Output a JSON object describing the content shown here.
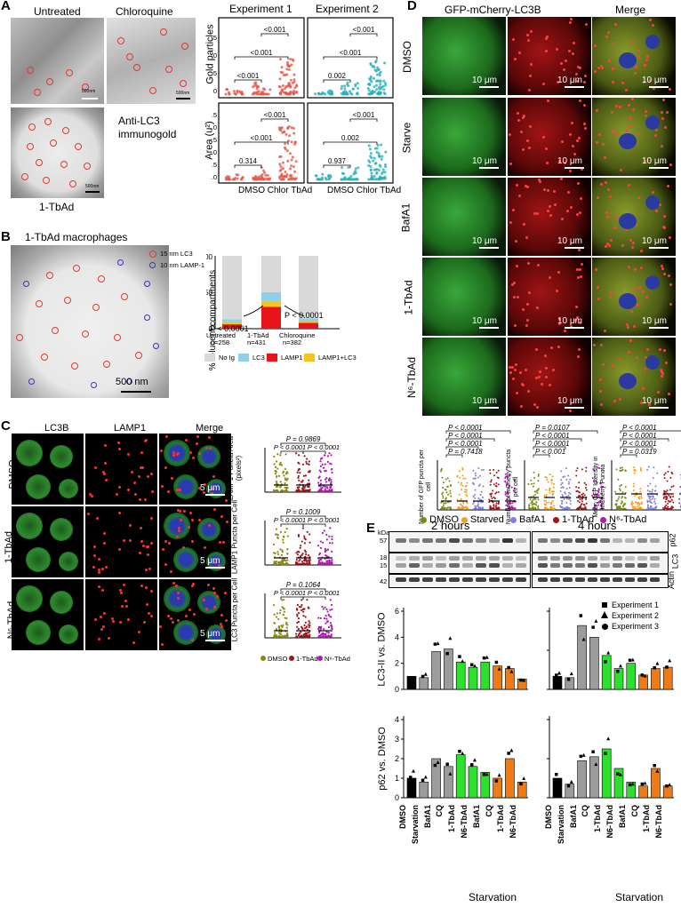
{
  "panels": {
    "A": {
      "letter": "A",
      "images": {
        "untreated": "Untreated",
        "chloroquine": "Chloroquine",
        "tbad": "1-TbAd"
      },
      "scalebar": "500nm",
      "caption_line1": "Anti-LC3",
      "caption_line2": "immunogold",
      "exp1": "Experiment 1",
      "exp2": "Experiment 2",
      "ylabel_top": "Gold particles",
      "ylabel_bottom": "Area (u²)",
      "xcats": "DMSO Chlor TbAd"
    },
    "B": {
      "letter": "B",
      "title": "1-TbAd macrophages",
      "legend_lc3": "15 nm LC3",
      "legend_lamp": "10 nm LAMP-1",
      "scalebar": "500 nm",
      "ylabel": "% e-lucent compartments",
      "groups": [
        "Untreated",
        "1-TbAd",
        "Chloroquine"
      ],
      "ns": [
        "n=258",
        "n=431",
        "n=382"
      ],
      "p1": "P < 0.0001",
      "p2": "P < 0.0001",
      "legend": [
        "No Ig",
        "LC3",
        "LAMP1",
        "LAMP1+LC3"
      ]
    },
    "C": {
      "letter": "C",
      "cols": [
        "LC3B",
        "LAMP1",
        "Merge"
      ],
      "rows": [
        "DMSO",
        "1-TbAd",
        "N⁶-TbAd"
      ],
      "scalebar": "5 μm",
      "plots": [
        {
          "ylabel": "LAMP1 Puncta Area (pixels²)",
          "p_top": "P = 0.9869",
          "p_a": "P < 0.0001",
          "p_b": "P < 0.0001"
        },
        {
          "ylabel": "LAMP1 Puncta per Cell",
          "p_top": "P = 0.1009",
          "p_a": "P < 0.0001",
          "p_b": "P < 0.0001"
        },
        {
          "ylabel": "LC3 Puncta per Cell",
          "p_top": "P = 0.1064",
          "p_a": "P < 0.0001",
          "p_b": "P < 0.0001"
        }
      ],
      "legend": [
        "DMSO",
        "1-TbAd",
        "N⁶-TbAd"
      ]
    },
    "D": {
      "letter": "D",
      "title": "GFP-mCherry-LC3B",
      "merge": "Merge",
      "rows": [
        "DMSO",
        "Starve",
        "BafA1",
        "1-TbAd",
        "N⁶-TbAd"
      ],
      "scalebar": "10 μm",
      "plot1": {
        "ylabel": "Number of GFP puncta per cell",
        "p": [
          "P < 0.0001",
          "P < 0.0001",
          "P < 0.0001",
          "P = 0.7418"
        ]
      },
      "plot2": {
        "ylabel": "Number of mCherry puncta per cell",
        "p": [
          "P = 0.0107",
          "P < 0.0001",
          "P < 0.0001",
          "P < 0.001"
        ]
      },
      "plot3": {
        "ylabel": "Mean GFP Intensity in mCherry Puncta",
        "p": [
          "P < 0.0001",
          "P < 0.0001",
          "P < 0.0001",
          "P = 0.0319"
        ]
      },
      "legend": [
        "DMSO",
        "Starved",
        "BafA1",
        "1-TbAd",
        "N⁶-TbAd"
      ]
    },
    "E": {
      "letter": "E",
      "t1": "2 hours",
      "t2": "4 hours",
      "kda": "kDa",
      "mw": [
        "57",
        "18",
        "15",
        "42"
      ],
      "right_labels": [
        "p62",
        "LC3",
        "Actin"
      ],
      "ylabel1": "LC3-II vs. DMSO",
      "ylabel2": "p62 vs. DMSO",
      "legend": [
        "Experiment 1",
        "Experiment 2",
        "Experiment 3"
      ],
      "xcats": [
        "DMSO",
        "Starvation",
        "BafA1",
        "CQ",
        "1-TbAd",
        "N6-TbAd",
        "BafA1",
        "CQ",
        "1-TbAd",
        "N6-TbAd"
      ],
      "xgroup": "Starvation"
    }
  },
  "chart_data": [
    {
      "type": "scatter",
      "panel": "A",
      "ylabel": "Gold particles",
      "experiments": [
        "Experiment 1",
        "Experiment 2"
      ],
      "categories": [
        "DMSO",
        "Chlor",
        "TbAd"
      ],
      "pvalues_exp1": [
        "<0.001",
        "<0.001",
        "<0.001"
      ],
      "pvalues_exp2": [
        "0.002",
        "<0.001",
        "<0.001"
      ]
    },
    {
      "type": "scatter",
      "panel": "A",
      "ylabel": "Area (u²)",
      "yticks": [
        0.0,
        0.5,
        1.0,
        1.5,
        2.0,
        2.5
      ],
      "categories": [
        "DMSO",
        "Chlor",
        "TbAd"
      ],
      "pvalues_exp1": [
        "0.314",
        "<0.001",
        "<0.001"
      ],
      "pvalues_exp2": [
        "0.937",
        "0.002",
        "<0.001"
      ]
    },
    {
      "type": "bar",
      "panel": "B",
      "stacked": true,
      "ylabel": "% e-lucent compartments",
      "ylim": [
        0,
        100
      ],
      "yticks": [
        0,
        50,
        100
      ],
      "categories": [
        "Untreated",
        "1-TbAd",
        "Chloroquine"
      ],
      "series": [
        {
          "name": "LAMP1",
          "values": [
            6,
            30,
            8
          ]
        },
        {
          "name": "LAMP1+LC3",
          "values": [
            3,
            8,
            3
          ]
        },
        {
          "name": "LC3",
          "values": [
            4,
            12,
            3
          ]
        },
        {
          "name": "No Ig",
          "values": [
            87,
            50,
            86
          ]
        }
      ]
    },
    {
      "type": "bar",
      "panel": "E",
      "ylabel": "LC3-II vs. DMSO",
      "time": "2 hours",
      "ylim": [
        0,
        6
      ],
      "yticks": [
        0,
        2,
        4,
        6
      ],
      "categories": [
        "DMSO",
        "Starvation",
        "BafA1",
        "CQ",
        "1-TbAd",
        "N6-TbAd",
        "BafA1",
        "CQ",
        "1-TbAd",
        "N6-TbAd"
      ],
      "values": [
        1.0,
        0.9,
        2.9,
        3.1,
        2.1,
        1.7,
        2.1,
        1.8,
        1.6,
        0.8
      ]
    },
    {
      "type": "bar",
      "panel": "E",
      "ylabel": "LC3-II vs. DMSO",
      "time": "4 hours",
      "ylim": [
        0,
        6
      ],
      "categories": [
        "DMSO",
        "Starvation",
        "BafA1",
        "CQ",
        "1-TbAd",
        "N6-TbAd",
        "BafA1",
        "CQ",
        "1-TbAd",
        "N6-TbAd"
      ],
      "values": [
        1.0,
        0.9,
        4.9,
        4.0,
        2.6,
        1.6,
        2.0,
        1.1,
        1.6,
        1.7
      ]
    },
    {
      "type": "bar",
      "panel": "E",
      "ylabel": "p62 vs. DMSO",
      "time": "2 hours",
      "ylim": [
        0,
        4
      ],
      "yticks": [
        0,
        1,
        2,
        3,
        4
      ],
      "categories": [
        "DMSO",
        "Starvation",
        "BafA1",
        "CQ",
        "1-TbAd",
        "N6-TbAd",
        "BafA1",
        "CQ",
        "1-TbAd",
        "N6-TbAd"
      ],
      "values": [
        1.0,
        0.8,
        2.0,
        1.6,
        2.2,
        1.6,
        1.3,
        1.0,
        2.0,
        0.8
      ]
    },
    {
      "type": "bar",
      "panel": "E",
      "ylabel": "p62 vs. DMSO",
      "time": "4 hours",
      "ylim": [
        0,
        4
      ],
      "categories": [
        "DMSO",
        "Starvation",
        "BafA1",
        "CQ",
        "1-TbAd",
        "N6-TbAd",
        "BafA1",
        "CQ",
        "1-TbAd",
        "N6-TbAd"
      ],
      "values": [
        1.0,
        0.7,
        1.9,
        2.1,
        2.5,
        1.5,
        0.8,
        0.6,
        1.5,
        0.6
      ]
    }
  ]
}
